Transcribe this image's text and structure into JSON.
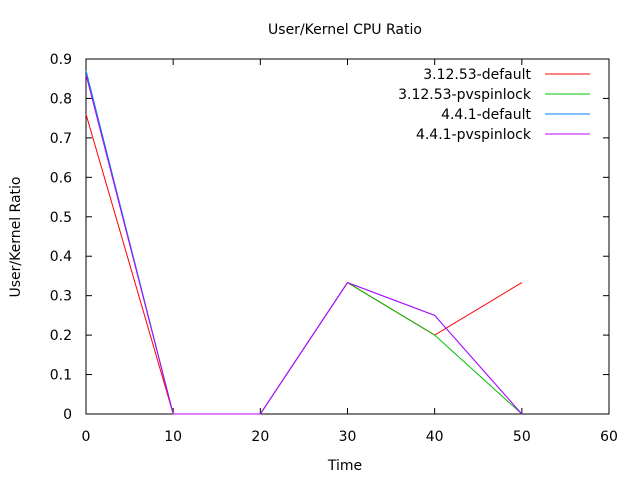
{
  "chart_data": {
    "type": "line",
    "title": "User/Kernel CPU Ratio",
    "xlabel": "Time",
    "ylabel": "User/Kernel Ratio",
    "xlim": [
      0,
      60
    ],
    "ylim": [
      0,
      0.9
    ],
    "xticks": [
      "0",
      "10",
      "20",
      "30",
      "40",
      "50",
      "60"
    ],
    "yticks": [
      "0",
      "0.1",
      "0.2",
      "0.3",
      "0.4",
      "0.5",
      "0.6",
      "0.7",
      "0.8",
      "0.9"
    ],
    "grid": false,
    "legend_position": "top-right",
    "series": [
      {
        "name": "3.12.53-default",
        "color": "#ff0000",
        "points": [
          [
            0,
            0.76
          ],
          [
            10,
            0
          ],
          [
            20,
            0
          ],
          [
            30,
            0.333
          ],
          [
            40,
            0.2
          ],
          [
            50,
            0.333
          ]
        ]
      },
      {
        "name": "3.12.53-pvspinlock",
        "color": "#00c000",
        "points": [
          [
            0,
            0.87
          ],
          [
            10,
            0
          ],
          [
            20,
            0
          ],
          [
            30,
            0.333
          ],
          [
            40,
            0.2
          ],
          [
            50,
            0
          ]
        ]
      },
      {
        "name": "4.4.1-default",
        "color": "#0080ff",
        "points": [
          [
            0,
            0.87
          ],
          [
            10,
            0
          ],
          [
            20,
            0
          ],
          [
            30,
            0.333
          ],
          [
            40,
            0.25
          ],
          [
            50,
            0
          ]
        ]
      },
      {
        "name": "4.4.1-pvspinlock",
        "color": "#c000ff",
        "points": [
          [
            0,
            0.86
          ],
          [
            10,
            0
          ],
          [
            20,
            0
          ],
          [
            30,
            0.333
          ],
          [
            40,
            0.25
          ],
          [
            50,
            0
          ]
        ]
      }
    ]
  }
}
